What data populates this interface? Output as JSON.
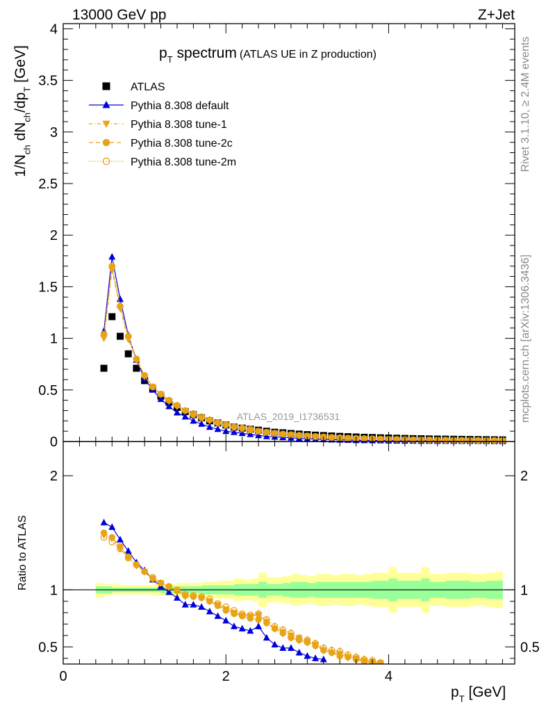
{
  "header": {
    "energy": "13000 GeV pp",
    "process": "Z+Jet",
    "watermark": "ATLAS_2019_I1736531",
    "side_top": "Rivet 3.1.10, ≥ 2.4M events",
    "side_bottom": "mcplots.cern.ch [arXiv:1306.3436]"
  },
  "colors": {
    "data": "#000000",
    "default": "#0000dd",
    "tunes": "#e8a317",
    "band_inner": "#99ff99",
    "band_outer": "#ffff99"
  },
  "chart_data": [
    {
      "type": "scatter",
      "title_main": "p",
      "title_sub": "T",
      "title_rest": " spectrum",
      "title_note": "(ATLAS UE in Z production)",
      "ylabel_parts": [
        "1/N",
        "ch",
        " dN",
        "ch",
        "/dp",
        "T",
        " [GeV]"
      ],
      "xlim": [
        0,
        5.55
      ],
      "ylim": [
        0,
        4.05
      ],
      "yticks": [
        "0",
        "0.5",
        "1",
        "1.5",
        "2",
        "2.5",
        "3",
        "3.5",
        "4"
      ],
      "legend": [
        "ATLAS",
        "Pythia 8.308 default",
        "Pythia 8.308 tune-1",
        "Pythia 8.308 tune-2c",
        "Pythia 8.308 tune-2m"
      ],
      "legend_position": "top-left",
      "x": [
        0.5,
        0.6,
        0.7,
        0.8,
        0.9,
        1.0,
        1.1,
        1.2,
        1.3,
        1.4,
        1.5,
        1.6,
        1.7,
        1.8,
        1.9,
        2.0,
        2.1,
        2.2,
        2.3,
        2.4,
        2.5,
        2.6,
        2.7,
        2.8,
        2.9,
        3.0,
        3.1,
        3.2,
        3.3,
        3.4,
        3.5,
        3.6,
        3.7,
        3.8,
        3.9,
        4.0,
        4.1,
        4.2,
        4.3,
        4.4,
        4.5,
        4.6,
        4.7,
        4.8,
        4.9,
        5.0,
        5.1,
        5.2,
        5.3,
        5.4
      ],
      "series": [
        {
          "name": "ATLAS",
          "marker": "square",
          "values": [
            0.71,
            1.21,
            1.02,
            0.85,
            0.71,
            0.59,
            0.51,
            0.44,
            0.38,
            0.33,
            0.29,
            0.26,
            0.23,
            0.2,
            0.18,
            0.16,
            0.14,
            0.13,
            0.12,
            0.11,
            0.1,
            0.09,
            0.085,
            0.078,
            0.072,
            0.067,
            0.062,
            0.058,
            0.054,
            0.05,
            0.047,
            0.044,
            0.041,
            0.039,
            0.036,
            0.034,
            0.032,
            0.03,
            0.028,
            0.027,
            0.025,
            0.024,
            0.023,
            0.022,
            0.021,
            0.02,
            0.019,
            0.018,
            0.017,
            0.016
          ]
        },
        {
          "name": "Pythia 8.308 default",
          "marker": "triangle-up",
          "values": [
            1.07,
            1.79,
            1.38,
            1.03,
            0.79,
            0.61,
            0.5,
            0.41,
            0.34,
            0.28,
            0.24,
            0.2,
            0.17,
            0.14,
            0.12,
            0.1,
            0.09,
            0.08,
            0.07,
            0.06,
            0.05,
            0.045,
            0.04,
            0.035,
            0.03,
            0.026,
            0.023,
            0.02,
            0.018,
            0.016,
            0.014,
            0.012,
            0.011,
            0.01,
            0.009,
            0.008,
            0.007,
            0.006,
            0.006,
            0.005,
            0.005,
            0.004,
            0.004,
            0.004,
            0.003,
            0.003,
            0.003,
            0.003,
            0.002,
            0.002
          ]
        },
        {
          "name": "Pythia 8.308 tune-1",
          "marker": "triangle-down",
          "values": [
            1.0,
            1.66,
            1.29,
            0.99,
            0.79,
            0.63,
            0.53,
            0.46,
            0.39,
            0.34,
            0.3,
            0.26,
            0.23,
            0.2,
            0.18,
            0.16,
            0.14,
            0.12,
            0.11,
            0.1,
            0.09,
            0.08,
            0.07,
            0.063,
            0.057,
            0.052,
            0.047,
            0.042,
            0.038,
            0.034,
            0.031,
            0.028,
            0.026,
            0.024,
            0.022,
            0.02,
            0.019,
            0.017,
            0.016,
            0.015,
            0.014,
            0.013,
            0.012,
            0.011,
            0.011,
            0.01,
            0.009,
            0.009,
            0.008,
            0.008
          ]
        },
        {
          "name": "Pythia 8.308 tune-2c",
          "marker": "circle",
          "values": [
            1.03,
            1.69,
            1.31,
            1.02,
            0.8,
            0.64,
            0.53,
            0.46,
            0.4,
            0.35,
            0.3,
            0.26,
            0.23,
            0.21,
            0.18,
            0.16,
            0.14,
            0.13,
            0.11,
            0.1,
            0.09,
            0.08,
            0.072,
            0.065,
            0.059,
            0.053,
            0.048,
            0.043,
            0.039,
            0.035,
            0.032,
            0.029,
            0.027,
            0.025,
            0.023,
            0.021,
            0.019,
            0.018,
            0.017,
            0.015,
            0.014,
            0.013,
            0.012,
            0.012,
            0.011,
            0.01,
            0.01,
            0.009,
            0.009,
            0.008
          ]
        },
        {
          "name": "Pythia 8.308 tune-2m",
          "marker": "circle-open",
          "values": [
            1.04,
            1.7,
            1.31,
            1.02,
            0.8,
            0.64,
            0.53,
            0.46,
            0.4,
            0.35,
            0.3,
            0.27,
            0.24,
            0.21,
            0.18,
            0.16,
            0.14,
            0.13,
            0.12,
            0.1,
            0.09,
            0.08,
            0.073,
            0.066,
            0.06,
            0.054,
            0.049,
            0.044,
            0.04,
            0.036,
            0.033,
            0.03,
            0.028,
            0.026,
            0.024,
            0.022,
            0.02,
            0.019,
            0.017,
            0.016,
            0.015,
            0.014,
            0.013,
            0.012,
            0.011,
            0.011,
            0.01,
            0.01,
            0.009,
            0.009
          ]
        }
      ]
    },
    {
      "type": "scatter",
      "ylabel": "Ratio to ATLAS",
      "xlabel_parts": [
        "p",
        "T",
        " [GeV]"
      ],
      "xlim": [
        0,
        5.55
      ],
      "ylim": [
        0.35,
        2.3
      ],
      "xticks": [
        "0",
        "2",
        "4"
      ],
      "yticks": [
        "0.5",
        "1",
        "2"
      ],
      "reference_line": 1,
      "x": [
        0.5,
        0.6,
        0.7,
        0.8,
        0.9,
        1.0,
        1.1,
        1.2,
        1.3,
        1.4,
        1.5,
        1.6,
        1.7,
        1.8,
        1.9,
        2.0,
        2.1,
        2.2,
        2.3,
        2.4,
        2.5,
        2.6,
        2.7,
        2.8,
        2.9,
        3.0,
        3.1,
        3.2,
        3.3,
        3.4,
        3.5,
        3.6,
        3.7,
        3.8,
        3.9
      ],
      "bands": [
        {
          "x": [
            0.45,
            0.55,
            0.65,
            0.75,
            0.85,
            0.95,
            1.05,
            1.15,
            1.25,
            1.35,
            1.45,
            1.55,
            1.65,
            1.75,
            1.85,
            1.95,
            2.05,
            2.15,
            2.25,
            2.35,
            2.45,
            2.55,
            2.65,
            2.75,
            2.85,
            2.95,
            3.05,
            3.15,
            3.25,
            3.35,
            3.45,
            3.55,
            3.65,
            3.75,
            3.85,
            3.95,
            4.05,
            4.15,
            4.25,
            4.35,
            4.45,
            4.55,
            4.65,
            4.75,
            4.85,
            4.95,
            5.05,
            5.15,
            5.25,
            5.35,
            5.45
          ],
          "outer_low": [
            0.93,
            0.95,
            0.96,
            0.96,
            0.96,
            0.96,
            0.96,
            0.95,
            0.95,
            0.94,
            0.94,
            0.94,
            0.94,
            0.93,
            0.93,
            0.92,
            0.92,
            0.9,
            0.91,
            0.9,
            0.85,
            0.89,
            0.89,
            0.88,
            0.86,
            0.87,
            0.88,
            0.86,
            0.86,
            0.87,
            0.86,
            0.86,
            0.87,
            0.86,
            0.85,
            0.85,
            0.8,
            0.85,
            0.85,
            0.85,
            0.8,
            0.86,
            0.86,
            0.85,
            0.85,
            0.85,
            0.86,
            0.86,
            0.85,
            0.84
          ],
          "outer_high": [
            1.06,
            1.05,
            1.05,
            1.04,
            1.04,
            1.04,
            1.04,
            1.05,
            1.05,
            1.05,
            1.06,
            1.06,
            1.06,
            1.07,
            1.07,
            1.08,
            1.08,
            1.1,
            1.09,
            1.1,
            1.15,
            1.11,
            1.11,
            1.12,
            1.14,
            1.13,
            1.12,
            1.14,
            1.14,
            1.13,
            1.14,
            1.14,
            1.13,
            1.14,
            1.15,
            1.15,
            1.2,
            1.15,
            1.15,
            1.15,
            1.2,
            1.14,
            1.14,
            1.15,
            1.15,
            1.15,
            1.14,
            1.14,
            1.15,
            1.16
          ],
          "inner_low": [
            0.97,
            0.97,
            0.98,
            0.98,
            0.98,
            0.98,
            0.98,
            0.98,
            0.97,
            0.97,
            0.97,
            0.97,
            0.97,
            0.96,
            0.96,
            0.96,
            0.96,
            0.95,
            0.95,
            0.95,
            0.93,
            0.95,
            0.95,
            0.94,
            0.93,
            0.93,
            0.94,
            0.93,
            0.93,
            0.93,
            0.93,
            0.93,
            0.93,
            0.93,
            0.92,
            0.92,
            0.9,
            0.92,
            0.92,
            0.92,
            0.9,
            0.93,
            0.93,
            0.92,
            0.92,
            0.92,
            0.93,
            0.93,
            0.92,
            0.92
          ],
          "inner_high": [
            1.03,
            1.03,
            1.02,
            1.02,
            1.02,
            1.02,
            1.02,
            1.02,
            1.03,
            1.03,
            1.03,
            1.03,
            1.03,
            1.04,
            1.04,
            1.04,
            1.04,
            1.05,
            1.05,
            1.05,
            1.07,
            1.05,
            1.05,
            1.06,
            1.07,
            1.07,
            1.06,
            1.07,
            1.07,
            1.07,
            1.07,
            1.07,
            1.07,
            1.07,
            1.08,
            1.08,
            1.1,
            1.08,
            1.08,
            1.08,
            1.1,
            1.07,
            1.07,
            1.08,
            1.08,
            1.08,
            1.07,
            1.07,
            1.08,
            1.08
          ]
        }
      ],
      "series": [
        {
          "name": "Pythia 8.308 default",
          "marker": "triangle-up",
          "values": [
            1.59,
            1.55,
            1.44,
            1.34,
            1.24,
            1.17,
            1.09,
            1.03,
            0.98,
            0.93,
            0.87,
            0.87,
            0.85,
            0.81,
            0.77,
            0.73,
            0.68,
            0.66,
            0.64,
            0.68,
            0.58,
            0.52,
            0.49,
            0.49,
            0.45,
            0.42,
            0.4,
            0.39,
            null,
            null,
            null,
            null,
            null,
            null,
            null
          ]
        },
        {
          "name": "Pythia 8.308 tune-1",
          "marker": "triangle-down",
          "values": [
            1.48,
            1.45,
            1.36,
            1.28,
            1.21,
            1.16,
            1.09,
            1.06,
            1.02,
            0.99,
            0.94,
            0.94,
            0.93,
            0.9,
            0.87,
            0.83,
            0.8,
            0.78,
            0.77,
            0.78,
            0.72,
            0.66,
            0.63,
            0.6,
            0.58,
            0.55,
            0.52,
            0.47,
            0.45,
            0.44,
            0.41,
            0.4,
            0.38,
            0.37,
            0.36
          ]
        },
        {
          "name": "Pythia 8.308 tune-2c",
          "marker": "circle",
          "values": [
            1.5,
            1.46,
            1.38,
            1.29,
            1.22,
            1.16,
            1.1,
            1.06,
            1.03,
            0.99,
            0.95,
            0.94,
            0.93,
            0.9,
            0.86,
            0.82,
            0.79,
            0.77,
            0.75,
            0.74,
            0.71,
            0.66,
            0.62,
            0.58,
            0.56,
            0.54,
            0.51,
            0.47,
            0.45,
            0.42,
            0.41,
            0.39,
            0.37,
            0.36,
            0.35
          ]
        },
        {
          "name": "Pythia 8.308 tune-2m",
          "marker": "circle-open",
          "values": [
            1.46,
            1.42,
            1.36,
            1.28,
            1.22,
            1.16,
            1.11,
            1.06,
            1.03,
            1.0,
            0.96,
            0.95,
            0.94,
            0.92,
            0.88,
            0.85,
            0.82,
            0.79,
            0.78,
            0.79,
            0.74,
            0.68,
            0.65,
            0.62,
            0.57,
            0.56,
            0.53,
            0.49,
            0.47,
            0.46,
            0.43,
            0.41,
            0.39,
            0.38,
            0.36
          ]
        }
      ]
    }
  ]
}
